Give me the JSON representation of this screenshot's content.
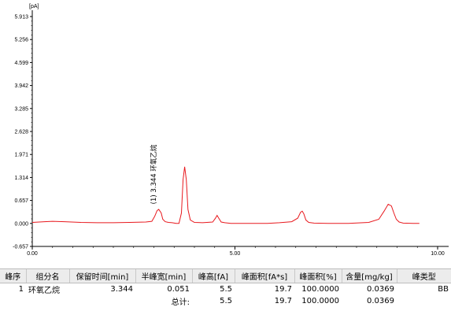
{
  "chart_data": {
    "type": "line",
    "unit_label": "[pA]",
    "ylim": [
      -0.657,
      5.913
    ],
    "xlim": [
      0.0,
      10.0
    ],
    "yticks": [
      "5.913",
      "5.256",
      "4.599",
      "3.942",
      "3.285",
      "2.628",
      "1.971",
      "1.314",
      "0.657",
      "0.000",
      "-0.657"
    ],
    "xticks": [
      "0.00",
      "5.00",
      "10.00"
    ],
    "grid": false,
    "series": [
      {
        "color": "#e8191e",
        "x": [
          0.0,
          0.3,
          0.5,
          0.8,
          1.2,
          1.6,
          2.0,
          2.4,
          2.8,
          2.95,
          3.02,
          3.08,
          3.12,
          3.18,
          3.22,
          3.28,
          3.36,
          3.45,
          3.55,
          3.62,
          3.68,
          3.72,
          3.76,
          3.8,
          3.84,
          3.9,
          4.0,
          4.2,
          4.45,
          4.52,
          4.56,
          4.6,
          4.66,
          4.75,
          4.9,
          5.3,
          5.8,
          6.1,
          6.4,
          6.55,
          6.62,
          6.66,
          6.7,
          6.75,
          6.82,
          6.95,
          7.3,
          7.8,
          8.3,
          8.55,
          8.68,
          8.78,
          8.86,
          8.92,
          8.98,
          9.05,
          9.15,
          9.4,
          9.55
        ],
        "y": [
          0.03,
          0.05,
          0.06,
          0.05,
          0.03,
          0.02,
          0.02,
          0.03,
          0.04,
          0.06,
          0.2,
          0.37,
          0.4,
          0.3,
          0.12,
          0.05,
          0.03,
          0.02,
          0.0,
          0.0,
          0.3,
          1.25,
          1.62,
          1.25,
          0.4,
          0.1,
          0.03,
          0.02,
          0.04,
          0.15,
          0.23,
          0.15,
          0.04,
          0.02,
          0.0,
          0.0,
          0.0,
          0.02,
          0.05,
          0.15,
          0.32,
          0.35,
          0.27,
          0.1,
          0.03,
          0.01,
          0.0,
          0.0,
          0.03,
          0.12,
          0.35,
          0.55,
          0.5,
          0.3,
          0.12,
          0.04,
          0.01,
          0.0,
          0.0
        ]
      }
    ],
    "annotations": [
      {
        "text": "(1) 3.344 环氧乙烷",
        "x": 3.344,
        "y": 0.55
      }
    ]
  },
  "table": {
    "headers": [
      "峰序",
      "组分名",
      "保留时间[min]",
      "半峰宽[min]",
      "峰高[fA]",
      "峰面积[fA*s]",
      "峰面积[%]",
      "含量[mg/kg]",
      "峰类型"
    ],
    "rows": [
      [
        "1",
        "环氧乙烷",
        "3.344",
        "0.051",
        "5.5",
        "19.7",
        "100.0000",
        "0.0369",
        "BB"
      ]
    ],
    "total": {
      "label": "总计:",
      "values": [
        "5.5",
        "19.7",
        "100.0000",
        "0.0369",
        ""
      ]
    }
  }
}
